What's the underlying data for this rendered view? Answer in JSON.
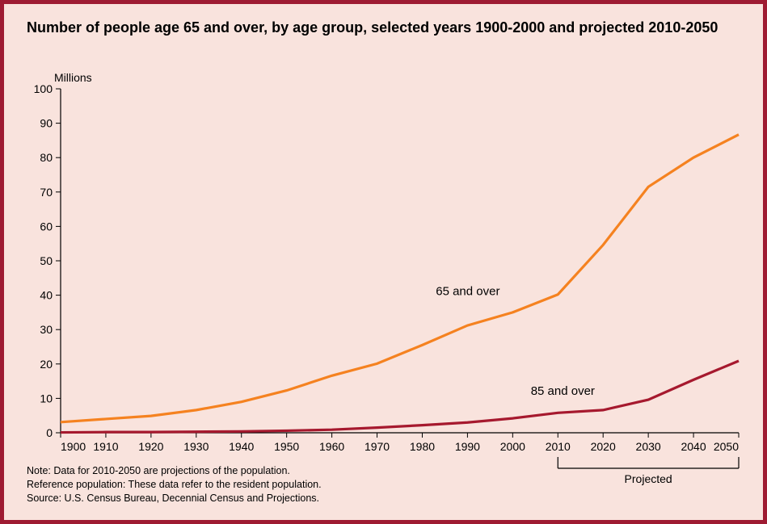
{
  "title": "Number of people age 65 and over, by age group, selected years 1900-2000 and projected 2010-2050",
  "title_fontsize": 18,
  "ylabel": "Millions",
  "chart": {
    "type": "line",
    "background_color": "#f9e3dd",
    "frame_border_color": "#9e1b32",
    "axis_color": "#000000",
    "xlim": [
      1900,
      2050
    ],
    "ylim": [
      0,
      100
    ],
    "x_ticks": [
      1900,
      1910,
      1920,
      1930,
      1940,
      1950,
      1960,
      1970,
      1980,
      1990,
      2000,
      2010,
      2020,
      2030,
      2040,
      2050
    ],
    "y_ticks": [
      0,
      10,
      20,
      30,
      40,
      50,
      60,
      70,
      80,
      90,
      100
    ],
    "series": [
      {
        "name": "65 and over",
        "color": "#f58220",
        "x": [
          1900,
          1910,
          1920,
          1930,
          1940,
          1950,
          1960,
          1970,
          1980,
          1990,
          2000,
          2010,
          2020,
          2030,
          2040,
          2050
        ],
        "y": [
          3.1,
          4.0,
          4.9,
          6.6,
          9.0,
          12.3,
          16.6,
          20.1,
          25.5,
          31.2,
          35.0,
          40.2,
          54.6,
          71.5,
          80.0,
          86.7
        ],
        "label_xy": [
          1983,
          40
        ]
      },
      {
        "name": "85 and over",
        "color": "#a6192e",
        "x": [
          1900,
          1910,
          1920,
          1930,
          1940,
          1950,
          1960,
          1970,
          1980,
          1990,
          2000,
          2010,
          2020,
          2030,
          2040,
          2050
        ],
        "y": [
          0.1,
          0.2,
          0.2,
          0.3,
          0.4,
          0.6,
          0.9,
          1.5,
          2.2,
          3.0,
          4.2,
          5.8,
          6.6,
          9.6,
          15.4,
          20.9
        ],
        "label_xy": [
          2004,
          11
        ]
      }
    ],
    "projected": {
      "label": "Projected",
      "x_start": 2010,
      "x_end": 2050
    },
    "line_width": 3.2,
    "tick_fontsize": 14,
    "series_label_fontsize": 15
  },
  "footnotes": [
    "Note:  Data for 2010-2050 are projections of the population.",
    "Reference population:  These data refer to the resident population.",
    "Source:  U.S. Census Bureau, Decennial Census and Projections."
  ]
}
